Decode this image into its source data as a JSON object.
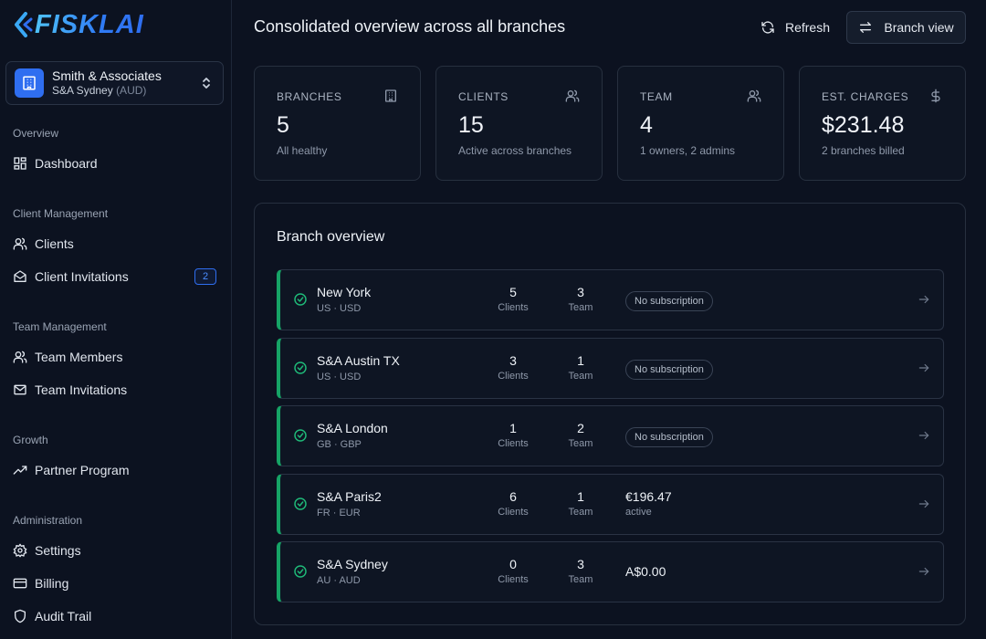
{
  "logo": {
    "text": "FISKLAI"
  },
  "org": {
    "name": "Smith & Associates",
    "branch": "S&A Sydney",
    "currency": "(AUD)"
  },
  "sidebar": {
    "sections": [
      {
        "label": "Overview",
        "items": [
          {
            "label": "Dashboard",
            "icon": "dashboard-icon"
          }
        ]
      },
      {
        "label": "Client Management",
        "items": [
          {
            "label": "Clients",
            "icon": "users-icon"
          },
          {
            "label": "Client Invitations",
            "icon": "mail-open-icon",
            "badge": "2"
          }
        ]
      },
      {
        "label": "Team Management",
        "items": [
          {
            "label": "Team Members",
            "icon": "user-group-icon"
          },
          {
            "label": "Team Invitations",
            "icon": "mail-icon"
          }
        ]
      },
      {
        "label": "Growth",
        "items": [
          {
            "label": "Partner Program",
            "icon": "trending-up-icon"
          }
        ]
      },
      {
        "label": "Administration",
        "items": [
          {
            "label": "Settings",
            "icon": "gear-icon"
          },
          {
            "label": "Billing",
            "icon": "credit-card-icon"
          },
          {
            "label": "Audit Trail",
            "icon": "shield-icon"
          }
        ]
      }
    ]
  },
  "header": {
    "title": "Consolidated overview across all branches",
    "refresh_label": "Refresh",
    "branch_view_label": "Branch view"
  },
  "stats": [
    {
      "label": "BRANCHES",
      "value": "5",
      "sub": "All healthy",
      "icon": "building-icon"
    },
    {
      "label": "CLIENTS",
      "value": "15",
      "sub": "Active across branches",
      "icon": "users-icon"
    },
    {
      "label": "TEAM",
      "value": "4",
      "sub": "1 owners, 2 admins",
      "icon": "user-group-icon"
    },
    {
      "label": "EST. CHARGES",
      "value": "$231.48",
      "sub": "2 branches billed",
      "icon": "dollar-icon"
    }
  ],
  "branch_overview": {
    "title": "Branch overview",
    "clients_label": "Clients",
    "team_label": "Team",
    "rows": [
      {
        "name": "New York",
        "meta": "US · USD",
        "clients": "5",
        "team": "3",
        "status": "No subscription",
        "charge": "",
        "charge_sub": ""
      },
      {
        "name": "S&A Austin TX",
        "meta": "US · USD",
        "clients": "3",
        "team": "1",
        "status": "No subscription",
        "charge": "",
        "charge_sub": ""
      },
      {
        "name": "S&A London",
        "meta": "GB · GBP",
        "clients": "1",
        "team": "2",
        "status": "No subscription",
        "charge": "",
        "charge_sub": ""
      },
      {
        "name": "S&A Paris2",
        "meta": "FR · EUR",
        "clients": "6",
        "team": "1",
        "status": "",
        "charge": "€196.47",
        "charge_sub": "active"
      },
      {
        "name": "S&A Sydney",
        "meta": "AU · AUD",
        "clients": "0",
        "team": "3",
        "status": "",
        "charge": "A$0.00",
        "charge_sub": ""
      }
    ]
  }
}
